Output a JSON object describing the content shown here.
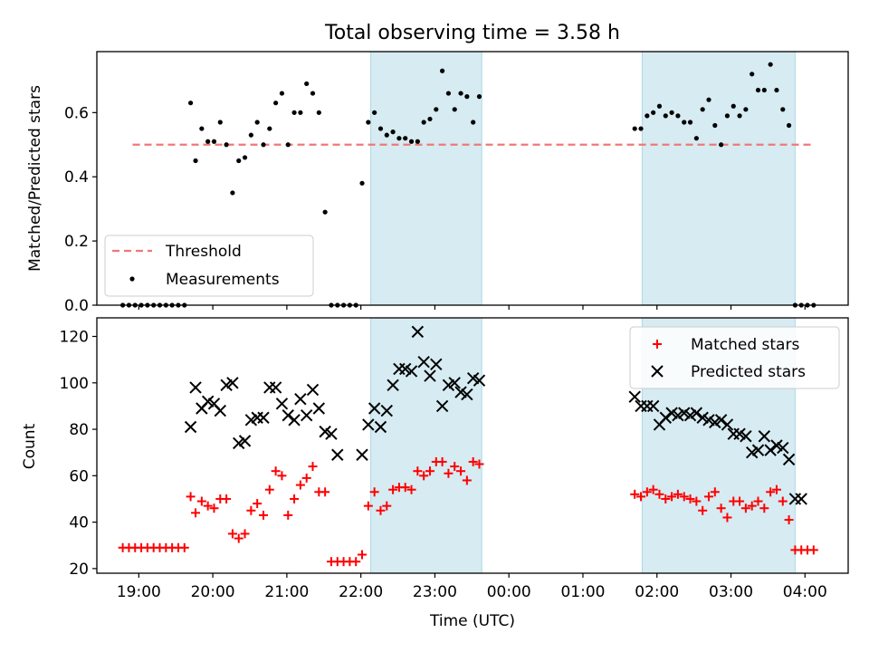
{
  "chart_data": [
    {
      "type": "scatter",
      "title": "Total observing time = 3.58 h",
      "xlabel": "",
      "ylabel": "Matched/Predicted stars",
      "xlim": [
        "18:26",
        "04:35"
      ],
      "ylim": [
        0,
        0.79
      ],
      "yticks": [
        0.0,
        0.2,
        0.4,
        0.6
      ],
      "ytick_labels": [
        "0.0",
        "0.2",
        "0.4",
        "0.6"
      ],
      "shaded_intervals": [
        [
          "22:08",
          "23:38"
        ],
        [
          "01:48",
          "03:52"
        ]
      ],
      "threshold": {
        "name": "Threshold",
        "value": 0.5,
        "x_from": "18:55",
        "x_to": "04:08",
        "color": "#f07878"
      },
      "legend": {
        "position": "lower-left",
        "entries": [
          "Threshold",
          "Measurements"
        ]
      },
      "series": [
        {
          "name": "Measurements",
          "color": "#000000",
          "x": [
            "18:47",
            "18:52",
            "18:57",
            "19:02",
            "19:07",
            "19:12",
            "19:17",
            "19:22",
            "19:27",
            "19:32",
            "19:37",
            "19:42",
            "19:46",
            "19:51",
            "19:56",
            "20:01",
            "20:06",
            "20:11",
            "20:16",
            "20:21",
            "20:26",
            "20:31",
            "20:36",
            "20:41",
            "20:46",
            "20:51",
            "20:56",
            "21:01",
            "21:06",
            "21:11",
            "21:16",
            "21:21",
            "21:26",
            "21:31",
            "21:36",
            "21:41",
            "21:46",
            "21:51",
            "21:56",
            "22:01",
            "22:06",
            "22:11",
            "22:16",
            "22:21",
            "22:26",
            "22:31",
            "22:36",
            "22:41",
            "22:46",
            "22:51",
            "22:56",
            "23:01",
            "23:06",
            "23:11",
            "23:16",
            "23:21",
            "23:26",
            "23:31",
            "23:36",
            "01:42",
            "01:47",
            "01:52",
            "01:57",
            "02:02",
            "02:07",
            "02:12",
            "02:17",
            "02:22",
            "02:27",
            "02:32",
            "02:37",
            "02:42",
            "02:47",
            "02:52",
            "02:57",
            "03:02",
            "03:07",
            "03:12",
            "03:17",
            "03:22",
            "03:27",
            "03:32",
            "03:37",
            "03:42",
            "03:47",
            "03:52",
            "03:57",
            "04:02",
            "04:07"
          ],
          "y": [
            0,
            0,
            0,
            0,
            0,
            0,
            0,
            0,
            0,
            0,
            0,
            0.63,
            0.45,
            0.55,
            0.51,
            0.51,
            0.57,
            0.5,
            0.35,
            0.45,
            0.46,
            0.53,
            0.57,
            0.5,
            0.55,
            0.63,
            0.66,
            0.5,
            0.6,
            0.6,
            0.69,
            0.66,
            0.6,
            0.29,
            0,
            0,
            0,
            0,
            0,
            0.38,
            0.57,
            0.6,
            0.55,
            0.53,
            0.54,
            0.52,
            0.52,
            0.51,
            0.51,
            0.57,
            0.58,
            0.61,
            0.73,
            0.66,
            0.61,
            0.66,
            0.65,
            0.57,
            0.65,
            0.55,
            0.55,
            0.59,
            0.6,
            0.62,
            0.59,
            0.6,
            0.59,
            0.57,
            0.57,
            0.52,
            0.61,
            0.64,
            0.56,
            0.5,
            0.59,
            0.62,
            0.59,
            0.61,
            0.72,
            0.67,
            0.67,
            0.75,
            0.67,
            0.61,
            0.56,
            0,
            0,
            0,
            0
          ]
        }
      ]
    },
    {
      "type": "scatter",
      "title": "",
      "xlabel": "Time (UTC)",
      "ylabel": "Count",
      "xlim": [
        "18:26",
        "04:35"
      ],
      "ylim": [
        18,
        128
      ],
      "yticks": [
        20,
        40,
        60,
        80,
        100,
        120
      ],
      "ytick_labels": [
        "20",
        "40",
        "60",
        "80",
        "100",
        "120"
      ],
      "xticks": [
        "19:00",
        "20:00",
        "21:00",
        "22:00",
        "23:00",
        "00:00",
        "01:00",
        "02:00",
        "03:00",
        "04:00"
      ],
      "xtick_labels": [
        "19:00",
        "20:00",
        "21:00",
        "22:00",
        "23:00",
        "00:00",
        "01:00",
        "02:00",
        "03:00",
        "04:00"
      ],
      "shaded_intervals": [
        [
          "22:08",
          "23:38"
        ],
        [
          "01:48",
          "03:52"
        ]
      ],
      "legend": {
        "position": "top-right",
        "entries": [
          "Matched stars",
          "Predicted stars"
        ]
      },
      "series": [
        {
          "name": "Matched stars",
          "marker": "plus",
          "color": "#ff0000",
          "x": [
            "18:47",
            "18:52",
            "18:57",
            "19:02",
            "19:07",
            "19:12",
            "19:17",
            "19:22",
            "19:27",
            "19:32",
            "19:37",
            "19:42",
            "19:46",
            "19:51",
            "19:56",
            "20:01",
            "20:06",
            "20:11",
            "20:16",
            "20:21",
            "20:26",
            "20:31",
            "20:36",
            "20:41",
            "20:46",
            "20:51",
            "20:56",
            "21:01",
            "21:06",
            "21:11",
            "21:16",
            "21:21",
            "21:26",
            "21:31",
            "21:36",
            "21:41",
            "21:46",
            "21:51",
            "21:56",
            "22:01",
            "22:06",
            "22:11",
            "22:16",
            "22:21",
            "22:26",
            "22:31",
            "22:36",
            "22:41",
            "22:46",
            "22:51",
            "22:56",
            "23:01",
            "23:06",
            "23:11",
            "23:16",
            "23:21",
            "23:26",
            "23:31",
            "23:36",
            "01:42",
            "01:47",
            "01:52",
            "01:57",
            "02:02",
            "02:07",
            "02:12",
            "02:17",
            "02:22",
            "02:27",
            "02:32",
            "02:37",
            "02:42",
            "02:47",
            "02:52",
            "02:57",
            "03:02",
            "03:07",
            "03:12",
            "03:17",
            "03:22",
            "03:27",
            "03:32",
            "03:37",
            "03:42",
            "03:47",
            "03:52",
            "03:57",
            "04:02",
            "04:07"
          ],
          "y": [
            29,
            29,
            29,
            29,
            29,
            29,
            29,
            29,
            29,
            29,
            29,
            51,
            44,
            49,
            47,
            46,
            50,
            50,
            35,
            33,
            35,
            45,
            48,
            43,
            54,
            62,
            60,
            43,
            50,
            56,
            59,
            64,
            53,
            53,
            23,
            23,
            23,
            23,
            23,
            26,
            47,
            53,
            45,
            47,
            54,
            55,
            55,
            54,
            62,
            60,
            62,
            66,
            66,
            61,
            64,
            62,
            58,
            66,
            65,
            52,
            51,
            53,
            54,
            52,
            50,
            51,
            52,
            51,
            50,
            49,
            45,
            51,
            53,
            46,
            42,
            49,
            49,
            46,
            47,
            49,
            46,
            53,
            54,
            49,
            41,
            28,
            28,
            28,
            28
          ]
        },
        {
          "name": "Predicted stars",
          "marker": "cross",
          "color": "#000000",
          "x": [
            "19:42",
            "19:46",
            "19:51",
            "19:56",
            "20:01",
            "20:06",
            "20:11",
            "20:16",
            "20:21",
            "20:26",
            "20:31",
            "20:36",
            "20:41",
            "20:46",
            "20:51",
            "20:56",
            "21:01",
            "21:06",
            "21:11",
            "21:16",
            "21:21",
            "21:26",
            "21:31",
            "21:36",
            "21:41",
            "22:01",
            "22:06",
            "22:11",
            "22:16",
            "22:21",
            "22:26",
            "22:31",
            "22:36",
            "22:41",
            "22:46",
            "22:51",
            "22:56",
            "23:01",
            "23:06",
            "23:11",
            "23:16",
            "23:21",
            "23:26",
            "23:31",
            "23:36",
            "01:42",
            "01:47",
            "01:52",
            "01:57",
            "02:02",
            "02:07",
            "02:12",
            "02:17",
            "02:22",
            "02:27",
            "02:32",
            "02:37",
            "02:42",
            "02:47",
            "02:52",
            "02:57",
            "03:02",
            "03:07",
            "03:12",
            "03:17",
            "03:22",
            "03:27",
            "03:32",
            "03:37",
            "03:42",
            "03:47",
            "03:52",
            "03:57"
          ],
          "y": [
            81,
            98,
            89,
            92,
            91,
            88,
            99,
            100,
            74,
            75,
            84,
            85,
            85,
            98,
            98,
            91,
            86,
            84,
            93,
            86,
            97,
            89,
            79,
            78,
            69,
            69,
            82,
            89,
            81,
            88,
            99,
            106,
            106,
            105,
            122,
            109,
            103,
            108,
            90,
            99,
            100,
            96,
            95,
            102,
            101,
            94,
            90,
            90,
            90,
            82,
            85,
            87,
            86,
            87,
            86,
            87,
            85,
            84,
            83,
            84,
            82,
            78,
            78,
            77,
            70,
            71,
            77,
            71,
            73,
            72,
            67,
            50,
            50
          ]
        }
      ]
    }
  ]
}
